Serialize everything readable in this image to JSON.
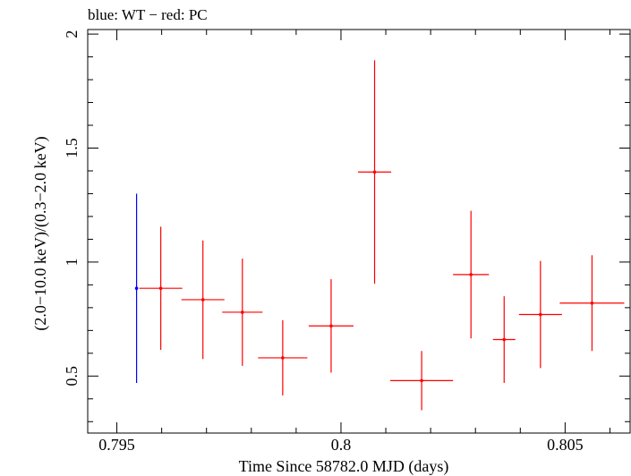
{
  "chart_data": {
    "type": "scatter",
    "title": "blue: WT − red: PC",
    "xlabel": "Time Since 58782.0 MJD (days)",
    "ylabel": "(2.0−10.0 keV)/(0.3−2.0 keV)",
    "xlim": [
      0.79435,
      0.80645
    ],
    "ylim": [
      0.25,
      2.02
    ],
    "x_ticks": [
      {
        "value": 0.795,
        "label": "0.795"
      },
      {
        "value": 0.8,
        "label": "0.8"
      },
      {
        "value": 0.805,
        "label": "0.805"
      }
    ],
    "y_ticks": [
      {
        "value": 0.5,
        "label": "0.5"
      },
      {
        "value": 1.0,
        "label": "1"
      },
      {
        "value": 1.5,
        "label": "1.5"
      },
      {
        "value": 2.0,
        "label": "2"
      }
    ],
    "grid": false,
    "series": [
      {
        "name": "WT",
        "color": "#0000ff",
        "points": [
          {
            "x": 0.79544,
            "xerr": 0.0,
            "y": 0.885,
            "yerr_low": 0.415,
            "yerr_high": 0.415
          }
        ]
      },
      {
        "name": "PC",
        "color": "#ff0000",
        "points": [
          {
            "x": 0.79598,
            "xerr": 0.00048,
            "y": 0.885,
            "yerr_low": 0.27,
            "yerr_high": 0.27
          },
          {
            "x": 0.79692,
            "xerr": 0.00048,
            "y": 0.835,
            "yerr_low": 0.26,
            "yerr_high": 0.26
          },
          {
            "x": 0.7978,
            "xerr": 0.00045,
            "y": 0.78,
            "yerr_low": 0.235,
            "yerr_high": 0.235
          },
          {
            "x": 0.7987,
            "xerr": 0.00055,
            "y": 0.58,
            "yerr_low": 0.165,
            "yerr_high": 0.165
          },
          {
            "x": 0.79978,
            "xerr": 0.0005,
            "y": 0.72,
            "yerr_low": 0.205,
            "yerr_high": 0.205
          },
          {
            "x": 0.80075,
            "xerr": 0.00037,
            "y": 1.395,
            "yerr_low": 0.49,
            "yerr_high": 0.49
          },
          {
            "x": 0.8018,
            "xerr": 0.0007,
            "y": 0.48,
            "yerr_low": 0.13,
            "yerr_high": 0.13
          },
          {
            "x": 0.8029,
            "xerr": 0.0004,
            "y": 0.945,
            "yerr_low": 0.28,
            "yerr_high": 0.28
          },
          {
            "x": 0.80364,
            "xerr": 0.00025,
            "y": 0.66,
            "yerr_low": 0.19,
            "yerr_high": 0.19
          },
          {
            "x": 0.80445,
            "xerr": 0.00048,
            "y": 0.77,
            "yerr_low": 0.235,
            "yerr_high": 0.235
          },
          {
            "x": 0.8056,
            "xerr": 0.00072,
            "y": 0.82,
            "yerr_low": 0.21,
            "yerr_high": 0.21
          }
        ]
      }
    ]
  }
}
